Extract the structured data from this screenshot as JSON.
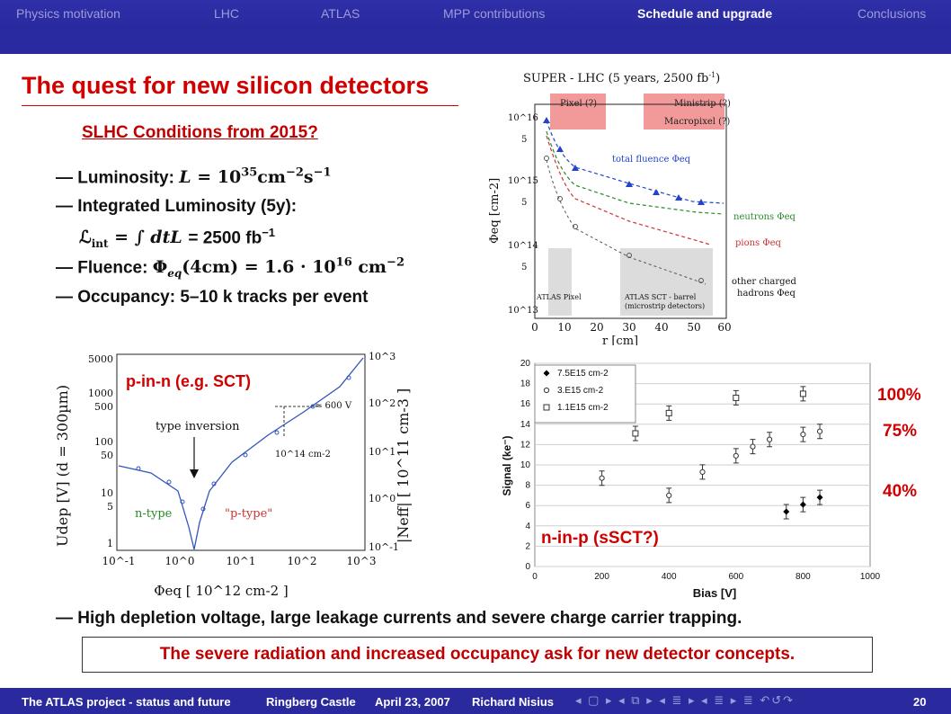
{
  "nav": {
    "tabs": [
      "Physics motivation",
      "LHC",
      "ATLAS",
      "MPP contributions",
      "Schedule and upgrade",
      "Conclusions"
    ]
  },
  "title": "The quest for new silicon detectors",
  "subtitle": "SLHC Conditions from 2015?",
  "bullets": {
    "b1_prefix": "— Luminosity:",
    "b2": "— Integrated Luminosity (5y):",
    "b3_value": "= 2500 fb",
    "b4_prefix": "— Fluence:",
    "b5": "— Occupancy: 5–10 k tracks per event",
    "b6": "— High depletion voltage, large leakage currents and severe charge carrier trapping."
  },
  "fluence_figure": {
    "title": "SUPER - LHC (5 years, 2500 fb",
    "title_sup": "-1",
    "title_end": ")",
    "box_pixel": "Pixel (?)",
    "box_ministrip": "Ministrip (?)",
    "box_macropixel": "Macropixel (?)",
    "ylabel": "Φeq [cm-2]",
    "xlabel": "r [cm]",
    "x_ticks": [
      "0",
      "10",
      "20",
      "30",
      "40",
      "50",
      "60"
    ],
    "y_ticks": [
      "10^16",
      "5",
      "10^15",
      "5",
      "10^14",
      "5",
      "10^13"
    ],
    "label_total": "total fluence Φeq",
    "label_neutrons": "neutrons Φeq",
    "label_pions": "pions Φeq",
    "label_other1": "other charged",
    "label_other2": "hadrons Φeq",
    "label_atlas_pixel": "ATLAS Pixel",
    "label_sct1": "ATLAS SCT - barrel",
    "label_sct2": "(microstrip detectors)"
  },
  "depletion_figure": {
    "label_pinn": "p-in-n (e.g. SCT)",
    "label_type_inversion": "type inversion",
    "label_ntype": "n-type",
    "label_ptype": "\"p-type\"",
    "label_600v": "≈ 600 V",
    "label_fluence_mark": "10^14 cm-2",
    "left_ticks": [
      "5000",
      "1000",
      "500",
      "100",
      "50",
      "10",
      "5",
      "1"
    ],
    "right_ticks": [
      "10^3",
      "10^2",
      "10^1",
      "10^0",
      "10^-1"
    ],
    "x_ticks": [
      "10^-1",
      "10^0",
      "10^1",
      "10^2",
      "10^3"
    ],
    "ylabel_left": "Udep [V] (d = 300µm)",
    "ylabel_right": "|Neff| [ 10^11 cm-3 ]",
    "xlabel": "Φeq [ 10^12 cm-2 ]"
  },
  "signal_chart": {
    "annotation": "n-in-p (sSCT?)",
    "percent_labels": [
      "100%",
      "75%",
      "40%"
    ]
  },
  "chart_data": {
    "type": "scatter",
    "title": "",
    "xlabel": "Bias [V]",
    "ylabel": "Signal (ke⁻)",
    "xlim": [
      0,
      1000
    ],
    "ylim": [
      0,
      20
    ],
    "x_ticks": [
      0,
      200,
      400,
      600,
      800,
      1000
    ],
    "y_ticks": [
      0,
      2,
      4,
      6,
      8,
      10,
      12,
      14,
      16,
      18,
      20
    ],
    "grid": true,
    "legend_position": "top-left",
    "series": [
      {
        "name": "7.5E15 cm-2",
        "marker": "filled-diamond",
        "x": [
          750,
          800,
          850
        ],
        "y": [
          5.4,
          6.1,
          6.8
        ]
      },
      {
        "name": "3.E15 cm-2",
        "marker": "open-circle",
        "x": [
          200,
          400,
          500,
          600,
          650,
          700,
          800,
          850
        ],
        "y": [
          8.7,
          7.0,
          9.3,
          10.9,
          11.8,
          12.5,
          13.0,
          13.3
        ]
      },
      {
        "name": "1.1E15 cm-2",
        "marker": "open-square",
        "x": [
          300,
          400,
          600,
          800
        ],
        "y": [
          13.1,
          15.1,
          16.6,
          17.0
        ]
      }
    ]
  },
  "conclusion": "The severe radiation and increased occupancy ask for new detector concepts.",
  "footer": {
    "talk": "The ATLAS project - status and future",
    "venue": "Ringberg Castle",
    "date": "April 23, 2007",
    "author": "Richard Nisius",
    "nav_symbols": "◂ ▢ ▸ ◂ ⧉ ▸ ◂ ≣ ▸ ◂ ≣ ▸ ≣ ↶↺↷",
    "page": "20"
  }
}
